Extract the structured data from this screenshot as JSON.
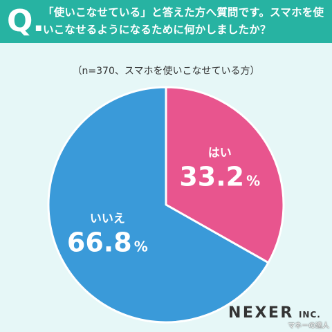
{
  "header": {
    "q_mark": "Q.",
    "question": "「使いこなせている」と答えた方へ質問です。スマホを使いこなせるようになるために何かしましたか？"
  },
  "subtitle": "（n=370、スマホを使いこなせている方）",
  "chart_data": {
    "type": "pie",
    "title": "（n=370、スマホを使いこなせている方）",
    "slices": [
      {
        "label": "はい",
        "value": 33.2,
        "display": "33.2",
        "color": "#e8558e"
      },
      {
        "label": "いいえ",
        "value": 66.8,
        "display": "66.8",
        "color": "#3a9ad9"
      }
    ],
    "unit": "%",
    "start_angle": "12 o'clock",
    "direction": "clockwise",
    "legend": "none"
  },
  "brand": {
    "name": "NEXER",
    "suffix": "INC."
  },
  "watermark": "マネーの達人"
}
